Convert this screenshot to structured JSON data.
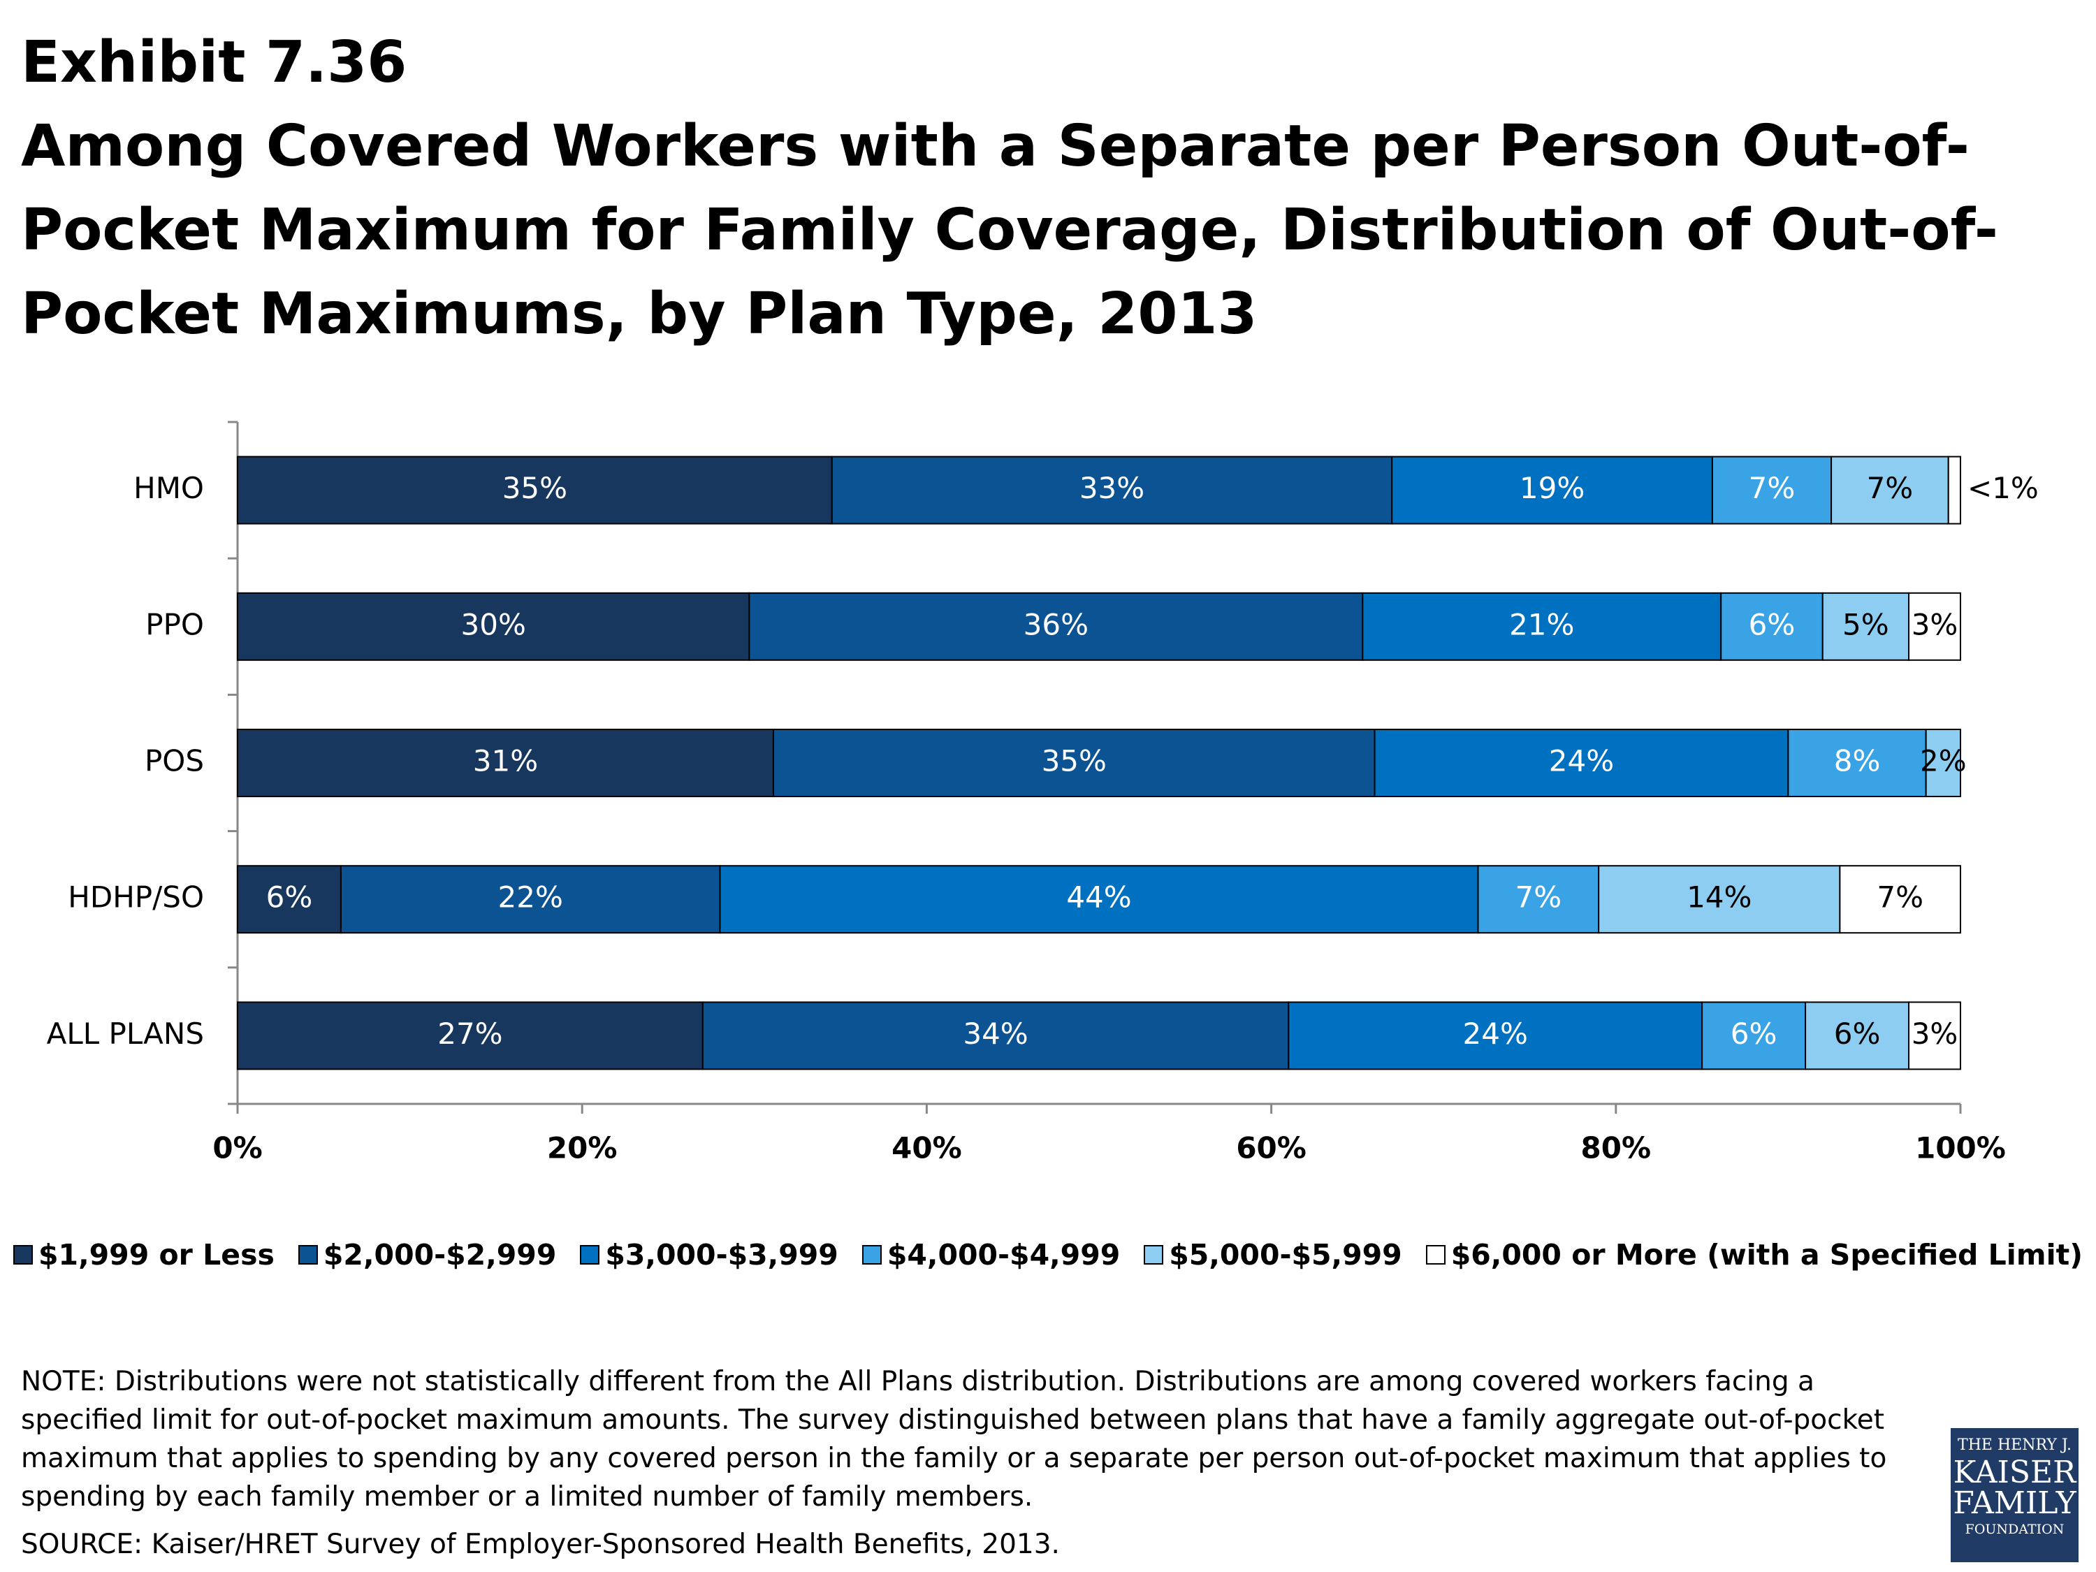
{
  "header": {
    "exhibit": "Exhibit 7.36",
    "title": "Among Covered Workers with a Separate per Person Out-of-Pocket Maximum for Family Coverage, Distribution of Out-of-Pocket Maximums, by Plan Type, 2013"
  },
  "chart_data": {
    "type": "stacked-barh",
    "categories": [
      "HMO",
      "PPO",
      "POS",
      "HDHP/SO",
      "ALL PLANS"
    ],
    "series": [
      {
        "name": "$1,999 or Less",
        "color": "#17375e",
        "values": [
          34.5,
          29.7,
          31.1,
          6.0,
          27.0
        ],
        "value_labels": [
          "35%",
          "30%",
          "31%",
          "6%",
          "27%"
        ]
      },
      {
        "name": "$2,000-$2,999",
        "color": "#0b5392",
        "values": [
          32.5,
          35.6,
          34.9,
          22.0,
          34.0
        ],
        "value_labels": [
          "33%",
          "36%",
          "35%",
          "22%",
          "34%"
        ]
      },
      {
        "name": "$3,000-$3,999",
        "color": "#0070c0",
        "values": [
          18.6,
          20.8,
          24.0,
          44.0,
          24.0
        ],
        "value_labels": [
          "19%",
          "21%",
          "24%",
          "44%",
          "24%"
        ]
      },
      {
        "name": "$4,000-$4,999",
        "color": "#3aa3e6",
        "values": [
          6.9,
          5.9,
          8.0,
          7.0,
          6.0
        ],
        "value_labels": [
          "7%",
          "6%",
          "8%",
          "7%",
          "6%"
        ]
      },
      {
        "name": "$5,000-$5,999",
        "color": "#8dcdf2",
        "values": [
          6.8,
          5.0,
          2.0,
          14.0,
          6.0
        ],
        "value_labels": [
          "7%",
          "5%",
          "2%",
          "14%",
          "6%"
        ]
      },
      {
        "name": "$6,000 or More (with a Specified Limit)",
        "color": "#ffffff",
        "values": [
          0.7,
          3.0,
          null,
          7.0,
          3.0
        ],
        "value_labels": [
          "<1%",
          "3%",
          null,
          "7%",
          "3%"
        ]
      }
    ],
    "xlim": [
      0,
      100
    ],
    "xticks": [
      {
        "value": 0,
        "label": "0%"
      },
      {
        "value": 20,
        "label": "20%"
      },
      {
        "value": 40,
        "label": "40%"
      },
      {
        "value": 60,
        "label": "60%"
      },
      {
        "value": 80,
        "label": "80%"
      },
      {
        "value": 100,
        "label": "100%"
      }
    ],
    "legend": "bottom"
  },
  "note": "NOTE: Distributions were not statistically different from the All Plans distribution. Distributions are among covered workers facing a specified limit for out-of-pocket maximum amounts. The survey distinguished between plans that have a family aggregate out-of-pocket maximum that applies to spending by any covered person in the family or a separate per person out-of-pocket maximum that applies to spending by each family member or a limited number of family members.",
  "source": "SOURCE:  Kaiser/HRET Survey of Employer-Sponsored Health Benefits, 2013.",
  "logo": {
    "line1": "THE HENRY J.",
    "line2": "KAISER",
    "line3": "FAMILY",
    "line4": "FOUNDATION"
  }
}
